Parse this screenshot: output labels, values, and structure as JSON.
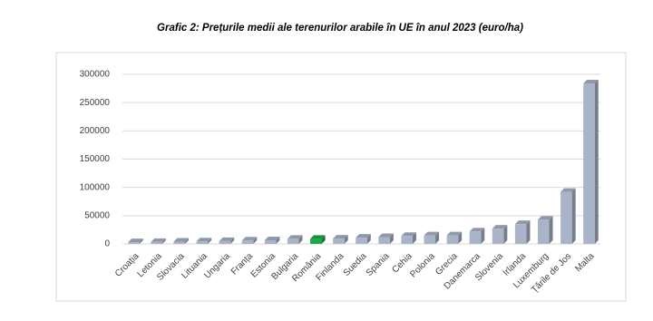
{
  "chart_data": {
    "type": "bar",
    "title": "Grafic 2: Prețurile medii ale terenurilor arabile în UE în anul 2023 (euro/ha)",
    "categories": [
      "Croația",
      "Letonia",
      "Slovacia",
      "Lituania",
      "Ungaria",
      "Franța",
      "Estonia",
      "Bulgaria",
      "România",
      "Finlanda",
      "Suedia",
      "Spania",
      "Cehia",
      "Polonia",
      "Grecia",
      "Danemarca",
      "Slovenia",
      "Irlanda",
      "Luxemburg",
      "Țările de Jos",
      "Malta"
    ],
    "values": [
      3000,
      3500,
      4000,
      4500,
      5000,
      6000,
      6500,
      9000,
      9000,
      9500,
      11000,
      12000,
      14000,
      15000,
      15000,
      22000,
      27000,
      35000,
      43000,
      92000,
      284000
    ],
    "colors": [
      "#a9b4c8",
      "#a9b4c8",
      "#a9b4c8",
      "#a9b4c8",
      "#a9b4c8",
      "#a9b4c8",
      "#a9b4c8",
      "#a9b4c8",
      "#1fa84a",
      "#a9b4c8",
      "#a9b4c8",
      "#a9b4c8",
      "#a9b4c8",
      "#a9b4c8",
      "#a9b4c8",
      "#a9b4c8",
      "#a9b4c8",
      "#a9b4c8",
      "#a9b4c8",
      "#a9b4c8",
      "#a9b4c8"
    ],
    "ylim": [
      0,
      300000
    ],
    "yticks": [
      0,
      50000,
      100000,
      150000,
      200000,
      250000,
      300000
    ],
    "grid": true
  }
}
